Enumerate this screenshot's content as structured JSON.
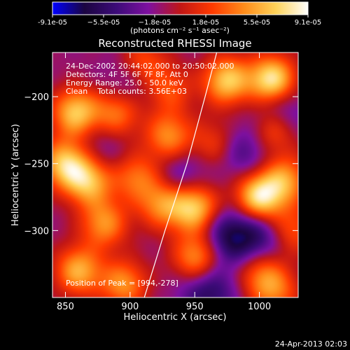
{
  "chart_data": {
    "type": "heatmap",
    "title": "Reconstructed RHESSI Image",
    "xlabel": "Heliocentric X (arcsec)",
    "ylabel": "Heliocentric Y (arcsec)",
    "xlim": [
      840,
      1030
    ],
    "ylim": [
      -350,
      -167
    ],
    "x_ticks": [
      850,
      900,
      950,
      1000
    ],
    "y_ticks": [
      -200,
      -250,
      -300
    ],
    "colorbar": {
      "range": [
        -9.1e-05,
        9.1e-05
      ],
      "tick_labels": [
        "-9.1e-05",
        "−5.5e-05",
        "−1.8e-05",
        "1.8e-05",
        "5.5e-05",
        "9.1e-05"
      ],
      "unit_label": "(photons cm⁻² s⁻¹ asec⁻²)",
      "colormap": [
        "#0000ff",
        "#1b0540",
        "#3c0b78",
        "#7e10a0",
        "#c01616",
        "#ff3a00",
        "#ff8c1a",
        "#ffd35a",
        "#ffffff"
      ]
    },
    "annotations": {
      "time_range": "24-Dec-2002 20:44:02.000 to 20:50:02.000",
      "detectors": "Detectors: 4F 5F 6F 7F 8F, Att 0",
      "energy_range": "Energy Range: 25.0 - 50.0 keV",
      "clean_line": "Clean    Total counts: 3.56E+03",
      "peak_position": "Position of Peak = [994,-278]"
    },
    "limb_arc": [
      [
        911,
        -350
      ],
      [
        927,
        -300
      ],
      [
        944,
        -250
      ],
      [
        958,
        -200
      ],
      [
        967,
        -167
      ]
    ],
    "blobs": [
      {
        "x": 1010,
        "y": -188,
        "v": 1.0
      },
      {
        "x": 975,
        "y": -188,
        "v": 0.8
      },
      {
        "x": 1000,
        "y": -275,
        "v": 0.95
      },
      {
        "x": 1020,
        "y": -262,
        "v": 0.6
      },
      {
        "x": 950,
        "y": -283,
        "v": 0.85
      },
      {
        "x": 952,
        "y": -320,
        "v": 0.7
      },
      {
        "x": 925,
        "y": -280,
        "v": 0.6
      },
      {
        "x": 858,
        "y": -212,
        "v": 0.8
      },
      {
        "x": 890,
        "y": -212,
        "v": 0.55
      },
      {
        "x": 850,
        "y": -250,
        "v": 0.8
      },
      {
        "x": 868,
        "y": -263,
        "v": 0.75
      },
      {
        "x": 880,
        "y": -295,
        "v": 0.6
      },
      {
        "x": 860,
        "y": -330,
        "v": 0.7
      },
      {
        "x": 895,
        "y": -340,
        "v": 0.6
      },
      {
        "x": 930,
        "y": -230,
        "v": 0.6
      },
      {
        "x": 1010,
        "y": -225,
        "v": 0.55
      },
      {
        "x": 1000,
        "y": -330,
        "v": 0.45
      },
      {
        "x": 1012,
        "y": -345,
        "v": 0.5
      },
      {
        "x": 1025,
        "y": -300,
        "v": 0.45
      },
      {
        "x": 910,
        "y": -175,
        "v": 0.45
      },
      {
        "x": 930,
        "y": -195,
        "v": 0.4
      },
      {
        "x": 965,
        "y": -235,
        "v": 0.35
      },
      {
        "x": 905,
        "y": -260,
        "v": 0.5
      },
      {
        "x": 975,
        "y": -305,
        "v": -0.5
      },
      {
        "x": 960,
        "y": -345,
        "v": -0.45
      },
      {
        "x": 1000,
        "y": -305,
        "v": -0.45
      },
      {
        "x": 1015,
        "y": -210,
        "v": -0.4
      },
      {
        "x": 900,
        "y": -190,
        "v": -0.25
      },
      {
        "x": 875,
        "y": -240,
        "v": -0.2
      },
      {
        "x": 940,
        "y": -260,
        "v": -0.3
      },
      {
        "x": 990,
        "y": -240,
        "v": -0.35
      }
    ]
  },
  "footer": {
    "timestamp": "24-Apr-2013 02:03"
  }
}
